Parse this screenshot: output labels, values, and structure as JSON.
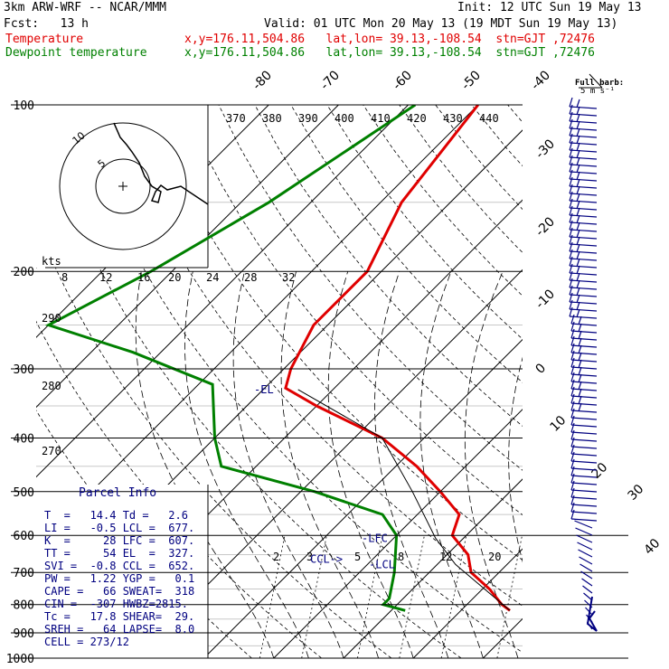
{
  "header": {
    "title": "3km ARW-WRF -- NCAR/MMM",
    "init": "Init: 12 UTC Sun 19 May 13",
    "fcst": "Fcst:   13 h",
    "valid": "Valid: 01 UTC Mon 20 May 13 (19 MDT Sun 19 May 13)",
    "temp_label": "Temperature",
    "dew_label": "Dewpoint temperature",
    "temp_info": "x,y=176.11,504.86   lat,lon= 39.13,-108.54  stn=GJT ,72476",
    "dew_info": "x,y=176.11,504.86   lat,lon= 39.13,-108.54  stn=GJT ,72476"
  },
  "colors": {
    "temperature": "#e00000",
    "dewpoint": "#008000",
    "info": "#000080",
    "text": "#000000"
  },
  "chart_data": {
    "type": "line",
    "skewt": true,
    "pressure_levels": [
      100,
      200,
      300,
      400,
      500,
      600,
      700,
      800,
      900,
      1000
    ],
    "isotherm_labels": [
      "-80",
      "-70",
      "-60",
      "-50",
      "-40",
      "-30",
      "-20",
      "-10",
      "0",
      "10",
      "20",
      "30",
      "40"
    ],
    "isentrope_labels": [
      "370",
      "380",
      "390",
      "400",
      "410",
      "420",
      "430",
      "440"
    ],
    "theta_left_labels": [
      "290",
      "280",
      "270"
    ],
    "mixing_ratio_labels": [
      "2",
      "3",
      "5",
      "8",
      "12",
      "20"
    ],
    "wind_speed_axis": {
      "unit": "kts",
      "ticks": [
        "8",
        "12",
        "16",
        "20",
        "24",
        "28",
        "32"
      ]
    },
    "series": [
      {
        "name": "Temperature",
        "points": [
          [
            100,
            -60
          ],
          [
            150,
            -57
          ],
          [
            200,
            -52
          ],
          [
            250,
            -52
          ],
          [
            300,
            -49
          ],
          [
            325,
            -47
          ],
          [
            350,
            -40
          ],
          [
            400,
            -26
          ],
          [
            450,
            -17
          ],
          [
            500,
            -10
          ],
          [
            550,
            -4
          ],
          [
            600,
            -2
          ],
          [
            650,
            3
          ],
          [
            700,
            6
          ],
          [
            750,
            11
          ],
          [
            800,
            15
          ],
          [
            820,
            17
          ]
        ]
      },
      {
        "name": "Dewpoint temperature",
        "points": [
          [
            100,
            -69
          ],
          [
            150,
            -76
          ],
          [
            200,
            -83
          ],
          [
            250,
            -90
          ],
          [
            280,
            -74
          ],
          [
            320,
            -58
          ],
          [
            400,
            -50
          ],
          [
            450,
            -45
          ],
          [
            500,
            -28
          ],
          [
            550,
            -15
          ],
          [
            600,
            -10
          ],
          [
            700,
            -5
          ],
          [
            780,
            -2
          ],
          [
            800,
            -2
          ],
          [
            820,
            2
          ]
        ]
      }
    ],
    "wind_label": "Full barb:",
    "wind_label_unit": "5 m s⁻¹",
    "annotations": {
      "el": "-EL",
      "lfc": "-LFC",
      "ccl": "CCL->",
      "lcl": "-LCL"
    },
    "hodograph_rings": [
      "5",
      "10"
    ]
  },
  "parcel_info": {
    "title": "Parcel Info",
    "rows": [
      "T  =   14.4 Td =   2.6",
      "LI =   -0.5 LCL =  677.",
      "K  =     28 LFC =  607.",
      "TT =     54 EL  =  327.",
      "SVI =  -0.8 CCL =  652.",
      "PW =   1.22 YGP =   0.1",
      "CAPE =   66 SWEAT=  318",
      "CIN =  -307 HWBZ=2815.",
      "Tc =   17.8 SHEAR=  29.",
      "SREH =   64 LAPSE=  8.0",
      "CELL = 273/12"
    ]
  }
}
